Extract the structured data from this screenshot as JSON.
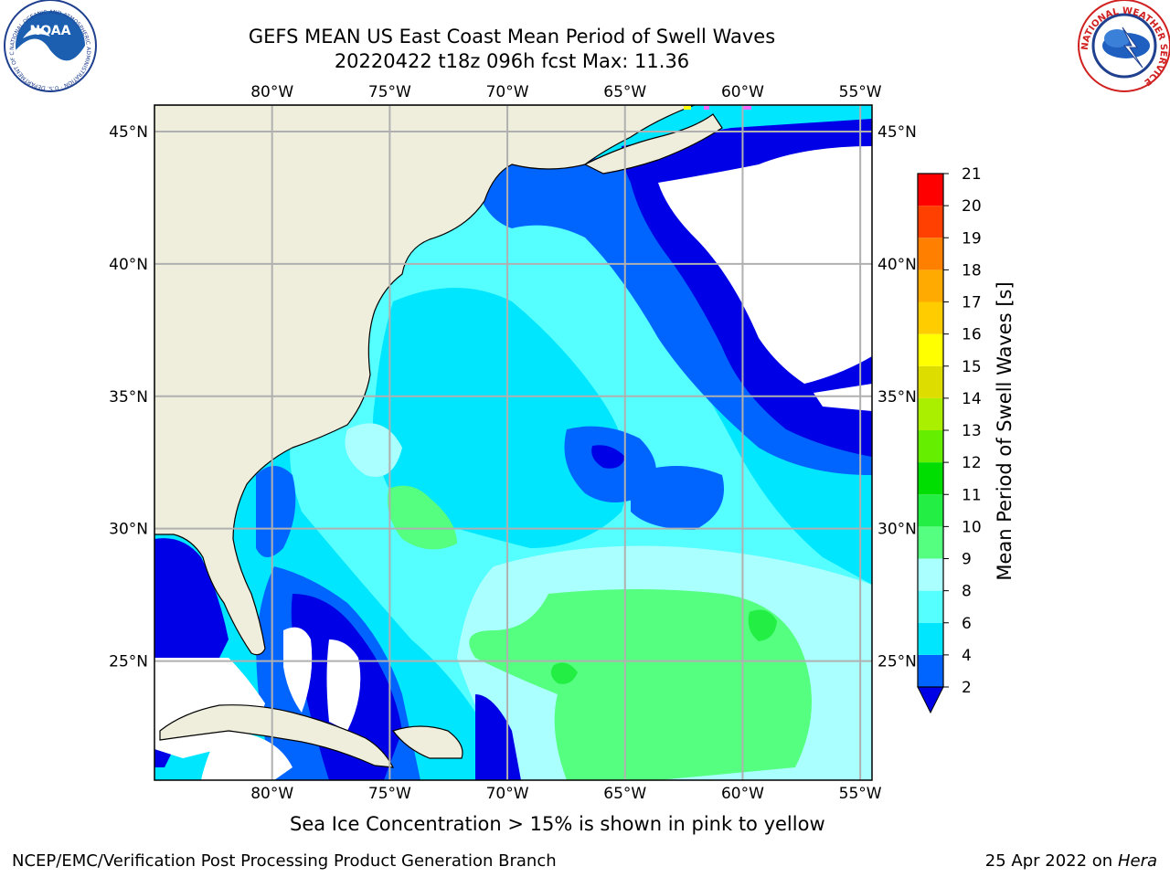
{
  "header": {
    "title_line1": "GEFS MEAN US East Coast Mean Period of Swell Waves",
    "title_line2": "20220422 t18z 096h fcst   Max: 11.36"
  },
  "logos": {
    "left": {
      "text": "NOAA",
      "ring_text": "NATIONAL OCEANIC AND ATMOSPHERIC ADMINISTRATION · U.S. DEPARTMENT OF COMMERCE"
    },
    "right": {
      "ring_text": "NATIONAL WEATHER SERVICE"
    }
  },
  "map": {
    "lon_labels": [
      "80°W",
      "75°W",
      "70°W",
      "65°W",
      "60°W",
      "55°W"
    ],
    "lat_labels": [
      "45°N",
      "40°N",
      "35°N",
      "30°N",
      "25°N"
    ],
    "lon_range": [
      -85,
      -54.5
    ],
    "lat_range": [
      20.5,
      46
    ],
    "colors": {
      "land": "#efeedc",
      "ocean_missing": "#ffffff",
      "grid": "#b0b0b0"
    }
  },
  "colorbar": {
    "label": "Mean Period of Swell Waves [s]",
    "ticks": [
      "2",
      "4",
      "6",
      "8",
      "9",
      "10",
      "11",
      "12",
      "13",
      "14",
      "15",
      "16",
      "17",
      "18",
      "19",
      "20",
      "21"
    ],
    "colors": [
      "#0000e6",
      "#0064ff",
      "#00e6ff",
      "#55ffff",
      "#aaffff",
      "#55ff80",
      "#22ee44",
      "#00dd00",
      "#66ee00",
      "#aaee00",
      "#dddd00",
      "#ffff00",
      "#ffcc00",
      "#ffaa00",
      "#ff8000",
      "#ff4000",
      "#ff0000"
    ]
  },
  "chart_data": {
    "type": "heatmap",
    "title": "GEFS MEAN US East Coast Mean Period of Swell Waves",
    "subtitle": "20220422 t18z 096h fcst   Max: 11.36",
    "colorbar_label": "Mean Period of Swell Waves [s]",
    "colorbar_range": [
      2,
      21
    ],
    "max_value": 11.36
  },
  "caption": "Sea Ice Concentration > 15% is shown in pink to yellow",
  "footer": {
    "left": "NCEP/EMC/Verification Post Processing Product Generation Branch",
    "right_date": "25 Apr 2022 on ",
    "right_host": "Hera"
  }
}
